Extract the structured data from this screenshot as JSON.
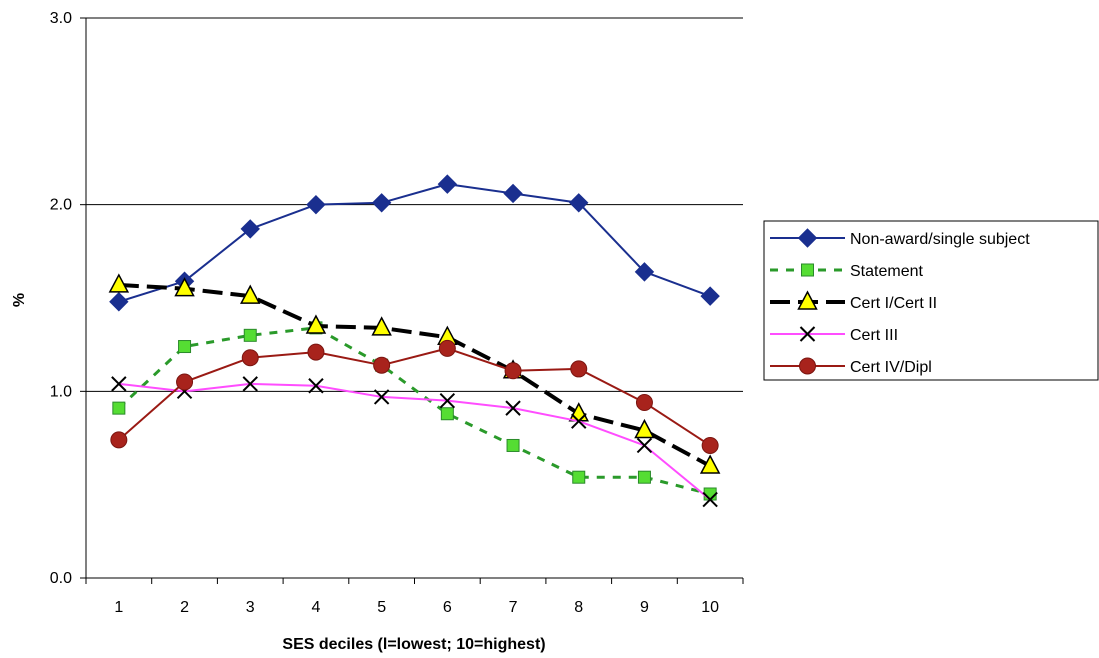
{
  "chart_data": {
    "type": "line",
    "xlabel": "SES deciles (l=lowest; 10=highest)",
    "ylabel": "%",
    "x": [
      1,
      2,
      3,
      4,
      5,
      6,
      7,
      8,
      9,
      10
    ],
    "x_tick_labels": [
      "1",
      "2",
      "3",
      "4",
      "5",
      "6",
      "7",
      "8",
      "9",
      "10"
    ],
    "ylim": [
      0,
      3
    ],
    "y_ticks": [
      0,
      1,
      2,
      3
    ],
    "y_tick_labels": [
      "0.0",
      "1.0",
      "2.0",
      "3.0"
    ],
    "grid": "horizontal",
    "legend_position": "right",
    "series": [
      {
        "name": "Non-award/single subject",
        "color": "#1a2f8f",
        "dash": "solid",
        "marker": "diamond",
        "values": [
          1.48,
          1.59,
          1.87,
          2.0,
          2.01,
          2.11,
          2.06,
          2.01,
          1.64,
          1.51
        ]
      },
      {
        "name": "Statement",
        "color": "#2a9a2a",
        "dash": "dashed",
        "marker": "square",
        "values": [
          0.91,
          1.24,
          1.3,
          1.34,
          1.14,
          0.88,
          0.71,
          0.54,
          0.54,
          0.45
        ]
      },
      {
        "name": "Cert I/Cert II",
        "color": "#000000",
        "dash": "longdash",
        "marker": "triangle",
        "values": [
          1.57,
          1.55,
          1.51,
          1.35,
          1.34,
          1.29,
          1.11,
          0.88,
          0.79,
          0.6
        ]
      },
      {
        "name": "Cert III",
        "color": "#ff4dff",
        "dash": "solid",
        "marker": "x",
        "values": [
          1.04,
          1.0,
          1.04,
          1.03,
          0.97,
          0.95,
          0.91,
          0.84,
          0.71,
          0.42
        ]
      },
      {
        "name": "Cert IV/Dipl",
        "color": "#9a1a14",
        "dash": "solid",
        "marker": "circle",
        "values": [
          0.74,
          1.05,
          1.18,
          1.21,
          1.14,
          1.23,
          1.11,
          1.12,
          0.94,
          0.71
        ]
      }
    ]
  }
}
